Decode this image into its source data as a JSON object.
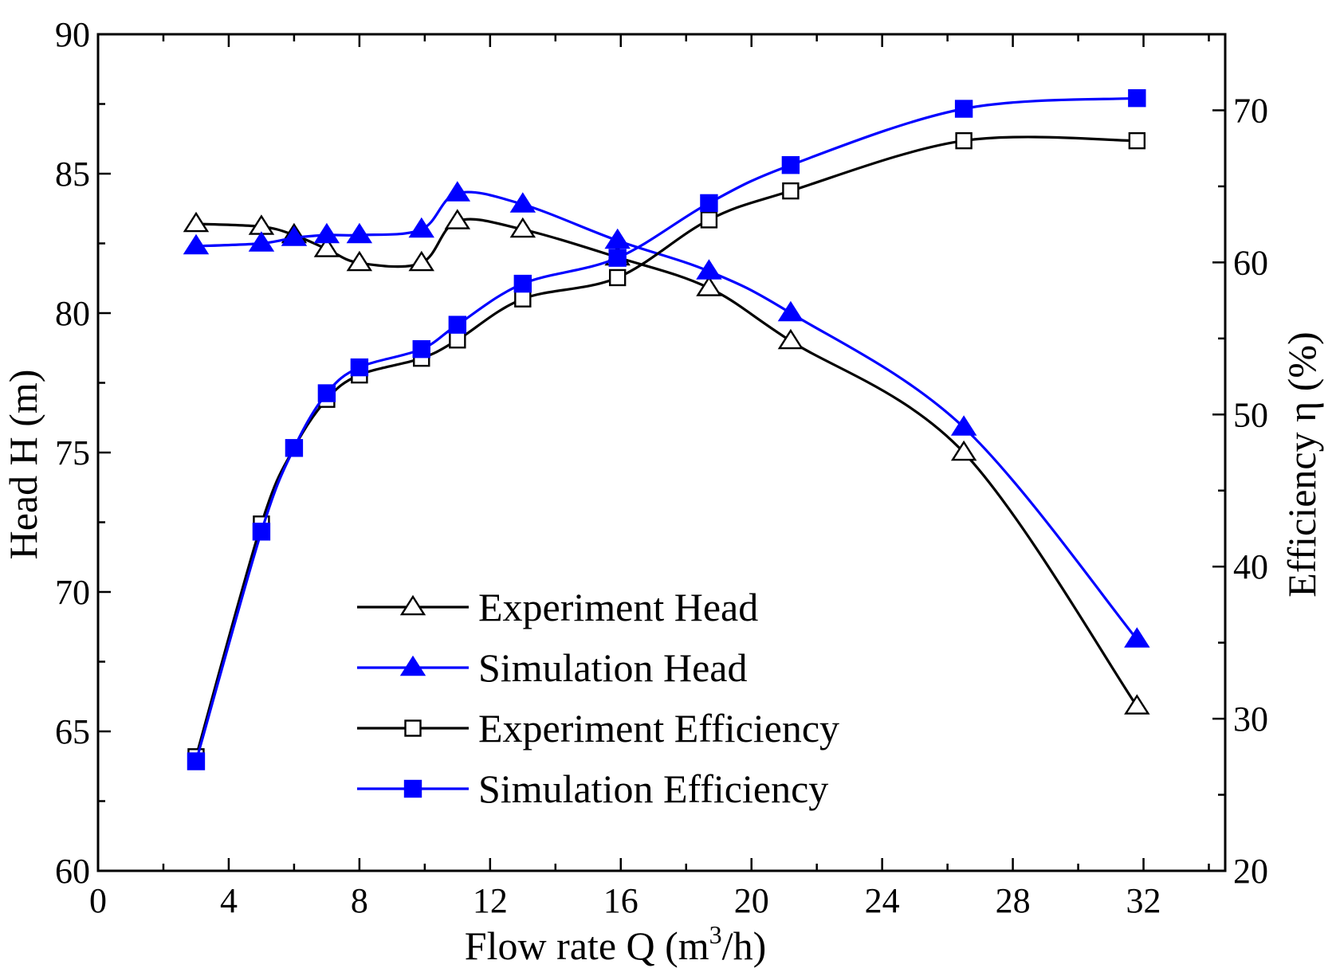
{
  "chart_data": {
    "type": "line",
    "x_axis": {
      "label_prefix": "Flow rate  Q (m",
      "label_sup": "3",
      "label_suffix": "/h)",
      "range": [
        0,
        34.5
      ],
      "ticks": [
        0,
        4,
        8,
        12,
        16,
        20,
        24,
        28,
        32
      ],
      "minor_step": 2
    },
    "y_left": {
      "label": "Head   H (m)",
      "range": [
        60,
        90
      ],
      "ticks": [
        60,
        65,
        70,
        75,
        80,
        85,
        90
      ],
      "minor_step": 2.5
    },
    "y_right": {
      "label": "Efficiency  η (%)",
      "range": [
        20,
        75
      ],
      "ticks": [
        20,
        30,
        40,
        50,
        60,
        70
      ],
      "minor_step": 5
    },
    "series": [
      {
        "name": "Experiment Head",
        "axis": "left",
        "color": "#000000",
        "marker": "triangle-open",
        "x": [
          3.0,
          5.0,
          6.0,
          7.0,
          8.0,
          9.9,
          11.0,
          13.0,
          15.9,
          18.7,
          21.2,
          26.5,
          31.8
        ],
        "y": [
          83.2,
          83.1,
          82.8,
          82.3,
          81.8,
          81.8,
          83.3,
          83.0,
          82.0,
          80.9,
          79.0,
          75.0,
          65.9
        ]
      },
      {
        "name": "Simulation Head",
        "axis": "left",
        "color": "#0000ff",
        "marker": "triangle-filled",
        "x": [
          3.0,
          5.0,
          6.0,
          7.0,
          8.0,
          9.9,
          11.0,
          13.0,
          15.9,
          18.7,
          21.2,
          26.5,
          31.8
        ],
        "y": [
          82.4,
          82.5,
          82.7,
          82.8,
          82.8,
          83.0,
          84.3,
          83.9,
          82.6,
          81.5,
          80.0,
          75.9,
          68.3
        ]
      },
      {
        "name": "Experiment Efficiency",
        "axis": "right",
        "color": "#000000",
        "marker": "square-open",
        "x": [
          3.0,
          5.0,
          6.0,
          7.0,
          8.0,
          9.9,
          11.0,
          13.0,
          15.9,
          18.7,
          21.2,
          26.5,
          31.8
        ],
        "y": [
          27.5,
          42.8,
          47.8,
          51.0,
          52.6,
          53.7,
          54.9,
          57.6,
          59.0,
          62.8,
          64.7,
          68.0,
          68.0
        ]
      },
      {
        "name": "Simulation Efficiency",
        "axis": "right",
        "color": "#0000ff",
        "marker": "square-filled",
        "x": [
          3.0,
          5.0,
          6.0,
          7.0,
          8.0,
          9.9,
          11.0,
          13.0,
          15.9,
          18.7,
          21.2,
          26.5,
          31.8
        ],
        "y": [
          27.2,
          42.3,
          47.8,
          51.4,
          53.1,
          54.3,
          55.9,
          58.6,
          60.3,
          63.9,
          66.4,
          70.1,
          70.8
        ]
      }
    ],
    "legend_position": "lower-center",
    "grid": false
  }
}
